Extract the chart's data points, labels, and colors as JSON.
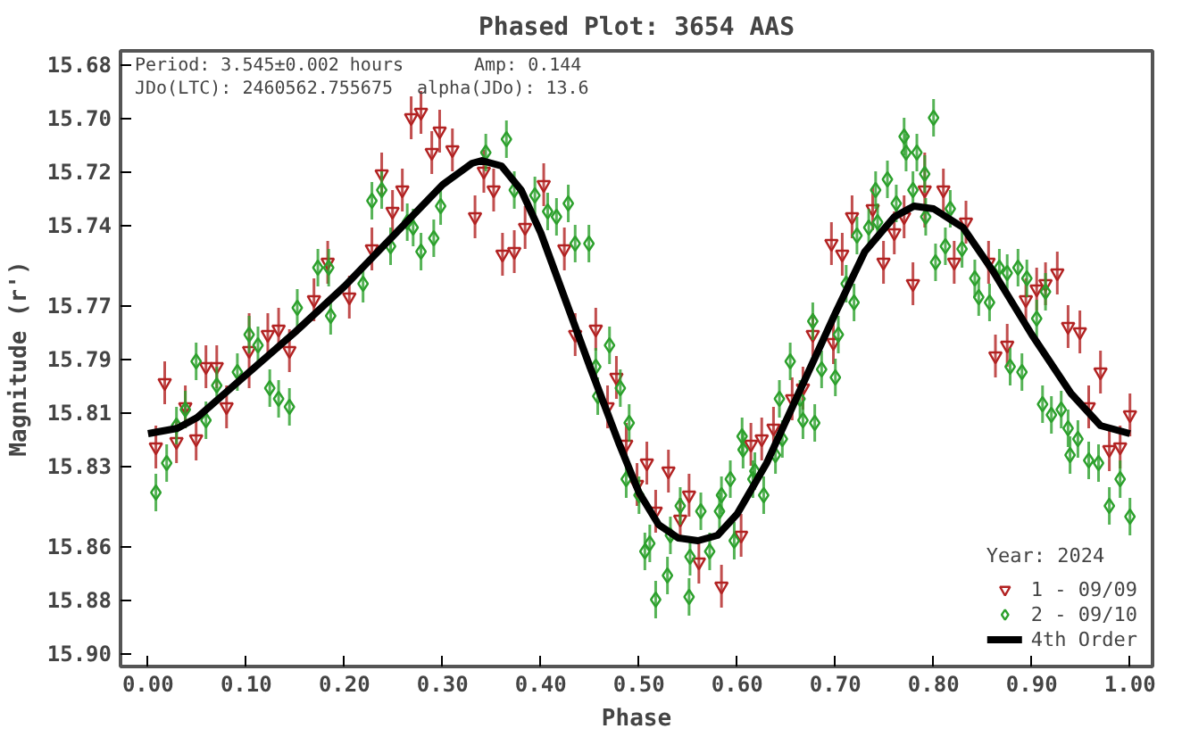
{
  "chart_data": {
    "type": "scatter",
    "title": "Phased Plot: 3654 AAS",
    "xlabel": "Phase",
    "ylabel": "Magnitude (r')",
    "annotations": [
      "Period: 3.545±0.002 hours",
      "Amp: 0.144",
      "JDo(LTC): 2460562.755675",
      "alpha(JDo): 13.6"
    ],
    "legend_title": "Year: 2024",
    "legend": "bottom right",
    "grid": false,
    "xlim": [
      -0.028,
      1.023
    ],
    "xticks": [
      {
        "value": 0,
        "label": "0.00"
      },
      {
        "value": 0.1,
        "label": "0.10"
      },
      {
        "value": 0.2,
        "label": "0.20"
      },
      {
        "value": 0.3,
        "label": "0.30"
      },
      {
        "value": 0.4,
        "label": "0.40"
      },
      {
        "value": 0.5,
        "label": "0.50"
      },
      {
        "value": 0.6,
        "label": "0.60"
      },
      {
        "value": 0.7,
        "label": "0.70"
      },
      {
        "value": 0.8,
        "label": "0.80"
      },
      {
        "value": 0.9,
        "label": "0.90"
      },
      {
        "value": 1,
        "label": "1.00"
      }
    ],
    "ylim": [
      15.905,
      15.675
    ],
    "yticks": [
      15.68,
      {
        "value": 15.7,
        "label": "15.70"
      },
      {
        "value": 15.72,
        "label": "15.72"
      },
      {
        "value": 15.74,
        "label": "15.74"
      },
      {
        "value": 15.77,
        "label": "15.77"
      },
      {
        "value": 15.79,
        "label": "15.79"
      },
      {
        "value": 15.81,
        "label": "15.81"
      },
      {
        "value": 15.83,
        "label": "15.83"
      },
      {
        "value": 15.86,
        "label": "15.86"
      },
      {
        "value": 15.88,
        "label": "15.88"
      },
      {
        "value": 15.9,
        "label": "15.90"
      }
    ],
    "series": [
      {
        "name": "1 - 09/09",
        "marker": "triangle",
        "color": "#b22222",
        "x": [
          0.008,
          0.017,
          0.029,
          0.038,
          0.049,
          0.059,
          0.07,
          0.08,
          0.103,
          0.122,
          0.133,
          0.144,
          0.169,
          0.183,
          0.205,
          0.228,
          0.238,
          0.249,
          0.259,
          0.268,
          0.278,
          0.289,
          0.297,
          0.31,
          0.333,
          0.342,
          0.352,
          0.361,
          0.373,
          0.384,
          0.403,
          0.424,
          0.435,
          0.456,
          0.468,
          0.477,
          0.487,
          0.498,
          0.508,
          0.517,
          0.53,
          0.542,
          0.551,
          0.561,
          0.584,
          0.604,
          0.614,
          0.625,
          0.637,
          0.656,
          0.667,
          0.677,
          0.696,
          0.698,
          0.707,
          0.717,
          0.738,
          0.749,
          0.76,
          0.77,
          0.779,
          0.791,
          0.81,
          0.821,
          0.833,
          0.856,
          0.863,
          0.875,
          0.894,
          0.905,
          0.914,
          0.926,
          0.937,
          0.949,
          0.958,
          0.97,
          0.979,
          0.99,
          1.0
        ],
        "values": [
          15.823,
          15.799,
          15.821,
          15.808,
          15.82,
          15.793,
          15.793,
          15.808,
          15.787,
          15.781,
          15.779,
          15.787,
          15.768,
          15.754,
          15.767,
          15.749,
          15.721,
          15.735,
          15.727,
          15.7,
          15.698,
          15.713,
          15.705,
          15.712,
          15.737,
          15.72,
          15.727,
          15.751,
          15.75,
          15.741,
          15.725,
          15.749,
          15.781,
          15.779,
          15.808,
          15.797,
          15.822,
          15.837,
          15.829,
          15.847,
          15.832,
          15.85,
          15.841,
          15.866,
          15.875,
          15.856,
          15.822,
          15.82,
          15.816,
          15.805,
          15.801,
          15.781,
          15.747,
          15.784,
          15.751,
          15.737,
          15.734,
          15.754,
          15.743,
          15.737,
          15.762,
          15.727,
          15.727,
          15.754,
          15.739,
          15.754,
          15.789,
          15.785,
          15.768,
          15.764,
          15.762,
          15.758,
          15.778,
          15.78,
          15.808,
          15.795,
          15.824,
          15.823,
          15.811
        ],
        "errors": [
          0.008,
          0.008,
          0.008,
          0.008,
          0.008,
          0.008,
          0.008,
          0.008,
          0.014,
          0.008,
          0.008,
          0.008,
          0.008,
          0.008,
          0.008,
          0.008,
          0.008,
          0.008,
          0.008,
          0.008,
          0.008,
          0.008,
          0.008,
          0.008,
          0.008,
          0.008,
          0.008,
          0.008,
          0.008,
          0.008,
          0.008,
          0.008,
          0.008,
          0.008,
          0.008,
          0.008,
          0.008,
          0.008,
          0.008,
          0.008,
          0.008,
          0.008,
          0.008,
          0.008,
          0.008,
          0.008,
          0.008,
          0.008,
          0.008,
          0.008,
          0.008,
          0.008,
          0.008,
          0.008,
          0.008,
          0.008,
          0.008,
          0.008,
          0.008,
          0.008,
          0.008,
          0.014,
          0.008,
          0.008,
          0.008,
          0.008,
          0.008,
          0.008,
          0.008,
          0.008,
          0.008,
          0.008,
          0.008,
          0.008,
          0.008,
          0.008,
          0.008,
          0.008,
          0.008
        ]
      },
      {
        "name": "2 - 09/10",
        "marker": "diamond",
        "color": "#2ca02c",
        "x": [
          0.008,
          0.019,
          0.029,
          0.038,
          0.049,
          0.059,
          0.07,
          0.091,
          0.103,
          0.112,
          0.124,
          0.133,
          0.144,
          0.152,
          0.173,
          0.184,
          0.186,
          0.219,
          0.228,
          0.238,
          0.247,
          0.264,
          0.27,
          0.278,
          0.291,
          0.298,
          0.344,
          0.365,
          0.373,
          0.394,
          0.407,
          0.416,
          0.428,
          0.435,
          0.449,
          0.456,
          0.458,
          0.47,
          0.481,
          0.487,
          0.49,
          0.5,
          0.506,
          0.511,
          0.517,
          0.529,
          0.532,
          0.542,
          0.551,
          0.552,
          0.563,
          0.572,
          0.582,
          0.584,
          0.593,
          0.597,
          0.605,
          0.606,
          0.616,
          0.618,
          0.627,
          0.639,
          0.643,
          0.646,
          0.654,
          0.664,
          0.667,
          0.677,
          0.679,
          0.686,
          0.7,
          0.703,
          0.711,
          0.719,
          0.722,
          0.734,
          0.741,
          0.743,
          0.753,
          0.762,
          0.77,
          0.772,
          0.779,
          0.783,
          0.791,
          0.792,
          0.8,
          0.802,
          0.812,
          0.817,
          0.829,
          0.842,
          0.846,
          0.857,
          0.867,
          0.875,
          0.878,
          0.886,
          0.89,
          0.895,
          0.905,
          0.911,
          0.914,
          0.92,
          0.93,
          0.937,
          0.939,
          0.947,
          0.958,
          0.968,
          0.979,
          0.99,
          1.0
        ],
        "values": [
          15.84,
          15.829,
          15.815,
          15.809,
          15.791,
          15.813,
          15.8,
          15.795,
          15.781,
          15.785,
          15.801,
          15.805,
          15.808,
          15.771,
          15.756,
          15.756,
          15.774,
          15.762,
          15.731,
          15.727,
          15.748,
          15.739,
          15.741,
          15.75,
          15.745,
          15.733,
          15.713,
          15.708,
          15.727,
          15.729,
          15.735,
          15.737,
          15.732,
          15.747,
          15.747,
          15.793,
          15.804,
          15.785,
          15.801,
          15.835,
          15.814,
          15.841,
          15.862,
          15.859,
          15.88,
          15.871,
          15.856,
          15.845,
          15.879,
          15.864,
          15.847,
          15.862,
          15.847,
          15.841,
          15.835,
          15.858,
          15.819,
          15.824,
          15.835,
          15.832,
          15.841,
          15.826,
          15.805,
          15.82,
          15.791,
          15.805,
          15.813,
          15.776,
          15.814,
          15.794,
          15.797,
          15.781,
          15.762,
          15.769,
          15.744,
          15.741,
          15.727,
          15.739,
          15.723,
          15.732,
          15.707,
          15.713,
          15.727,
          15.713,
          15.721,
          15.737,
          15.7,
          15.754,
          15.748,
          15.734,
          15.749,
          15.76,
          15.767,
          15.769,
          15.756,
          15.758,
          15.793,
          15.756,
          15.795,
          15.76,
          15.775,
          15.807,
          15.765,
          15.811,
          15.809,
          15.816,
          15.826,
          15.82,
          15.828,
          15.829,
          15.845,
          15.835,
          15.849
        ],
        "errors": [
          0.007,
          0.007,
          0.007,
          0.007,
          0.007,
          0.007,
          0.007,
          0.007,
          0.007,
          0.007,
          0.007,
          0.007,
          0.007,
          0.007,
          0.007,
          0.007,
          0.007,
          0.007,
          0.007,
          0.007,
          0.007,
          0.007,
          0.007,
          0.007,
          0.007,
          0.007,
          0.007,
          0.007,
          0.007,
          0.007,
          0.007,
          0.007,
          0.007,
          0.007,
          0.007,
          0.007,
          0.007,
          0.007,
          0.007,
          0.007,
          0.007,
          0.007,
          0.007,
          0.007,
          0.007,
          0.007,
          0.007,
          0.007,
          0.007,
          0.007,
          0.007,
          0.007,
          0.007,
          0.007,
          0.007,
          0.007,
          0.007,
          0.007,
          0.007,
          0.007,
          0.007,
          0.007,
          0.007,
          0.007,
          0.007,
          0.007,
          0.007,
          0.007,
          0.007,
          0.007,
          0.007,
          0.007,
          0.007,
          0.007,
          0.007,
          0.007,
          0.007,
          0.007,
          0.007,
          0.007,
          0.007,
          0.007,
          0.007,
          0.007,
          0.007,
          0.007,
          0.007,
          0.007,
          0.007,
          0.007,
          0.007,
          0.007,
          0.007,
          0.007,
          0.007,
          0.007,
          0.007,
          0.007,
          0.007,
          0.007,
          0.007,
          0.007,
          0.007,
          0.007,
          0.007,
          0.007,
          0.007,
          0.007,
          0.007,
          0.007,
          0.007,
          0.007,
          0.007
        ]
      },
      {
        "name": "4th Order",
        "type": "line",
        "line_style": "solid",
        "color": "#000000",
        "x": [
          0,
          0.03,
          0.05,
          0.1,
          0.15,
          0.2,
          0.25,
          0.3,
          0.33,
          0.34,
          0.36,
          0.38,
          0.4,
          0.42,
          0.45,
          0.48,
          0.5,
          0.52,
          0.54,
          0.56,
          0.58,
          0.6,
          0.63,
          0.66,
          0.7,
          0.73,
          0.76,
          0.78,
          0.8,
          0.83,
          0.86,
          0.9,
          0.94,
          0.97,
          1.0
        ],
        "values": [
          15.818,
          15.816,
          15.812,
          15.796,
          15.78,
          15.763,
          15.744,
          15.725,
          15.717,
          15.716,
          15.718,
          15.727,
          15.743,
          15.763,
          15.793,
          15.822,
          15.84,
          15.852,
          15.857,
          15.858,
          15.856,
          15.848,
          15.829,
          15.805,
          15.773,
          15.75,
          15.737,
          15.733,
          15.734,
          15.741,
          15.757,
          15.781,
          15.803,
          15.815,
          15.818
        ]
      }
    ]
  }
}
